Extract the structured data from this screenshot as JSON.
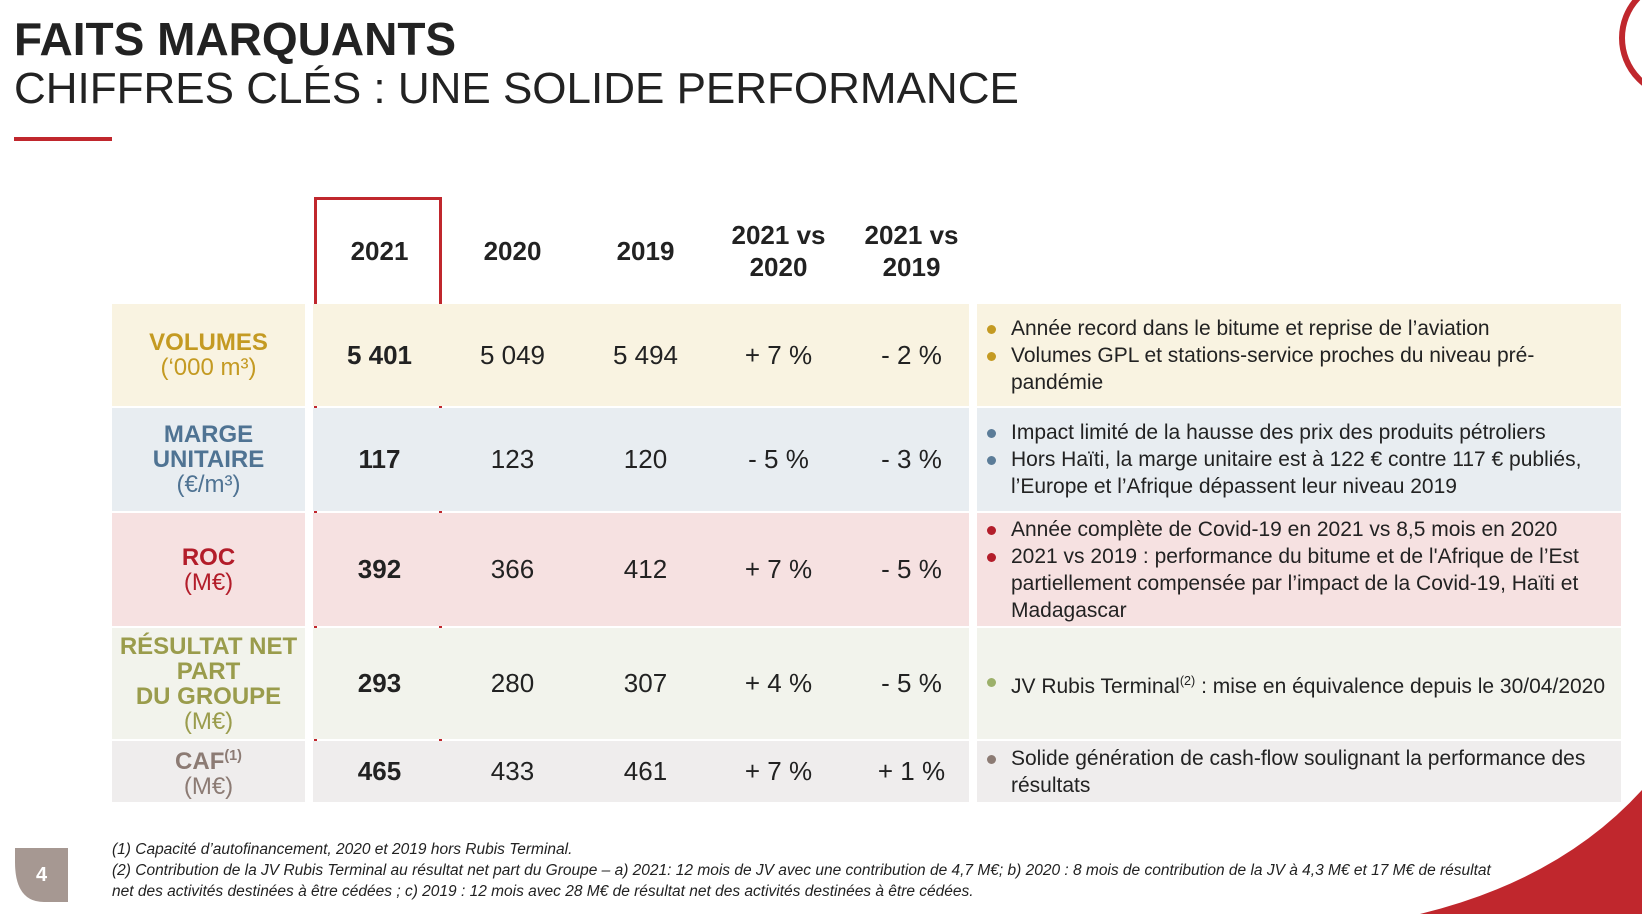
{
  "header": {
    "title": "FAITS MARQUANTS",
    "subtitle": "CHIFFRES CLÉS : UNE SOLIDE PERFORMANCE"
  },
  "table": {
    "columns": [
      "2021",
      "2020",
      "2019",
      "2021 vs 2020",
      "2021 vs 2019"
    ],
    "rows": [
      {
        "label": [
          "VOLUMES"
        ],
        "unit": "(‘000 m³)",
        "values": [
          "5 401",
          "5 049",
          "5 494",
          "+ 7 %",
          "- 2 %"
        ],
        "notes": [
          "Année record dans le bitume et reprise de l’aviation",
          "Volumes GPL et stations-service proches du niveau pré-pandémie"
        ]
      },
      {
        "label": [
          "MARGE",
          "UNITAIRE"
        ],
        "unit": "(€/m³)",
        "values": [
          "117",
          "123",
          "120",
          "- 5 %",
          "- 3 %"
        ],
        "notes": [
          "Impact limité de la hausse des prix des produits pétroliers",
          "Hors Haïti, la marge unitaire est à 122 € contre 117 € publiés, l’Europe et l’Afrique dépassent leur niveau 2019"
        ]
      },
      {
        "label": [
          "ROC"
        ],
        "unit": "(M€)",
        "values": [
          "392",
          "366",
          "412",
          "+ 7 %",
          "- 5 %"
        ],
        "notes": [
          "Année complète de Covid-19 en 2021 vs 8,5 mois en 2020",
          "2021 vs 2019 : performance du bitume et de l'Afrique de l’Est partiellement compensée par l’impact de la Covid-19, Haïti et Madagascar"
        ]
      },
      {
        "label": [
          "RÉSULTAT NET",
          "PART",
          "DU GROUPE"
        ],
        "unit": "(M€)",
        "values": [
          "293",
          "280",
          "307",
          "+ 4 %",
          "- 5 %"
        ],
        "notes": [
          [
            "JV Rubis Terminal",
            "(2)",
            " : mise en équivalence depuis le 30/04/2020"
          ]
        ]
      },
      {
        "label": [
          "CAF"
        ],
        "label_sup": "(1)",
        "unit": "(M€)",
        "values": [
          "465",
          "433",
          "461",
          "+ 7 %",
          "+ 1 %"
        ],
        "notes": [
          "Solide génération de cash-flow soulignant la performance des résultats"
        ]
      }
    ]
  },
  "footnotes": [
    "(1) Capacité d’autofinancement, 2020 et 2019 hors Rubis Terminal.",
    "(2) Contribution de la JV Rubis Terminal au résultat net part du Groupe – a) 2021: 12 mois de JV avec une contribution de 4,7 M€; b) 2020 : 8 mois de contribution de la JV à 4,3 M€ et 17 M€ de résultat net des activités destinées à être cédées ; c) 2019 : 12 mois avec 28 M€ de résultat net des activités destinées à être cédées."
  ],
  "page_number": "4"
}
